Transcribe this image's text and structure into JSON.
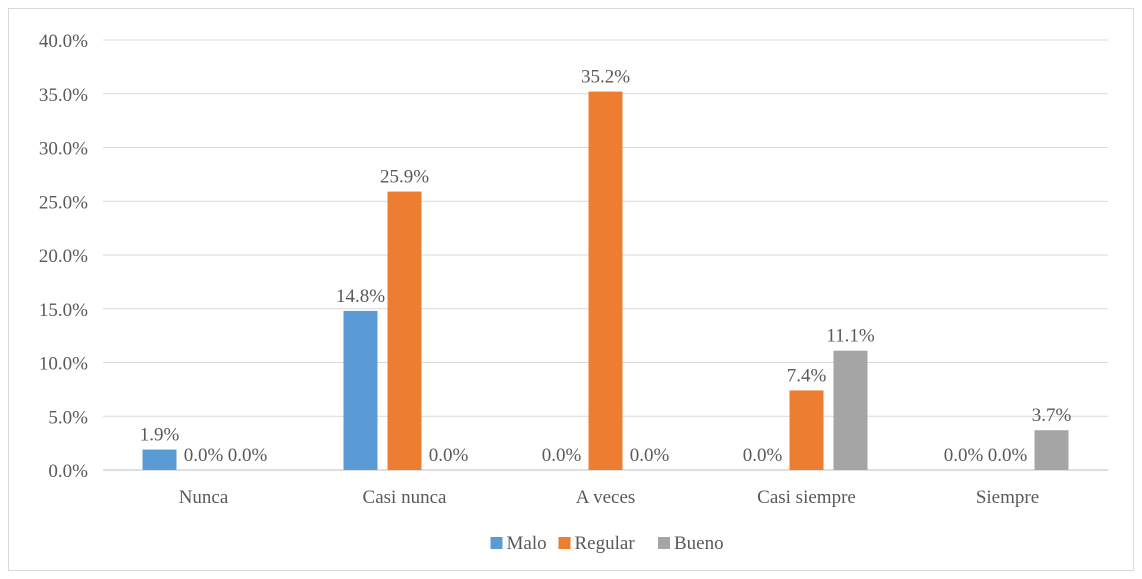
{
  "chart_data": {
    "type": "bar",
    "title": "",
    "xlabel": "",
    "ylabel": "",
    "categories": [
      "Nunca",
      "Casi nunca",
      "A veces",
      "Casi siempre",
      "Siempre"
    ],
    "series": [
      {
        "name": "Malo",
        "color": "#5b9bd5",
        "values": [
          1.9,
          14.8,
          0.0,
          0.0,
          0.0
        ],
        "labels": [
          "1.9%",
          "14.8%",
          "0.0%",
          "0.0%",
          "0.0%"
        ]
      },
      {
        "name": "Regular",
        "color": "#ed7d31",
        "values": [
          0.0,
          25.9,
          35.2,
          7.4,
          0.0
        ],
        "labels": [
          "0.0%",
          "25.9%",
          "35.2%",
          "7.4%",
          "0.0%"
        ]
      },
      {
        "name": "Bueno",
        "color": "#a5a5a5",
        "values": [
          0.0,
          0.0,
          0.0,
          11.1,
          3.7
        ],
        "labels": [
          "0.0%",
          "0.0%",
          "0.0%",
          "11.1%",
          "3.7%"
        ]
      }
    ],
    "ylim": [
      0,
      40
    ],
    "yticks": [
      "0.0%",
      "5.0%",
      "10.0%",
      "15.0%",
      "20.0%",
      "25.0%",
      "30.0%",
      "35.0%",
      "40.0%"
    ],
    "grid": true,
    "legend_position": "bottom"
  }
}
